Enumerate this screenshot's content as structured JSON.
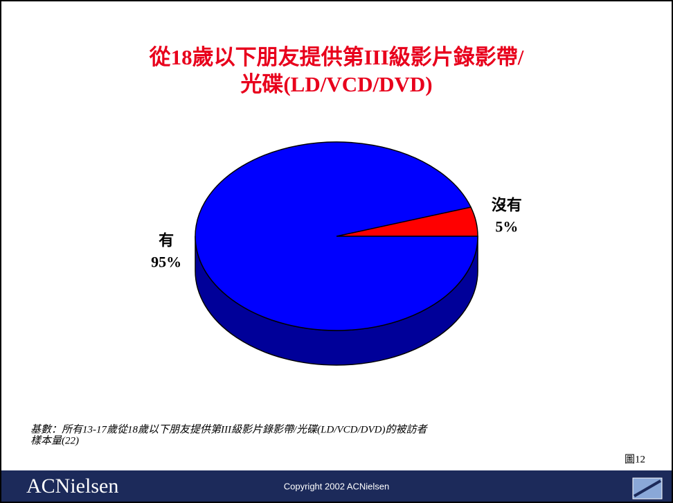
{
  "chart_data": {
    "type": "pie",
    "title": [
      "從18歲以下朋友提供第III級影片錄影帶/",
      "光碟(LD/VCD/DVD)"
    ],
    "categories": [
      "沒有",
      "有"
    ],
    "values": [
      5,
      95
    ],
    "value_labels": [
      "5%",
      "95%"
    ],
    "colors": [
      "#ff0000",
      "#0000ff"
    ],
    "notes": [
      "基數：所有13-17歲從18歲以下朋友提供第III級影片錄影帶/光碟(LD/VCD/DVD)的被訪者",
      "樣本量(22)"
    ],
    "figure": "圖12"
  },
  "footer": {
    "logo": "ACNielsen",
    "copyright": "Copyright 2002 ACNielsen"
  }
}
